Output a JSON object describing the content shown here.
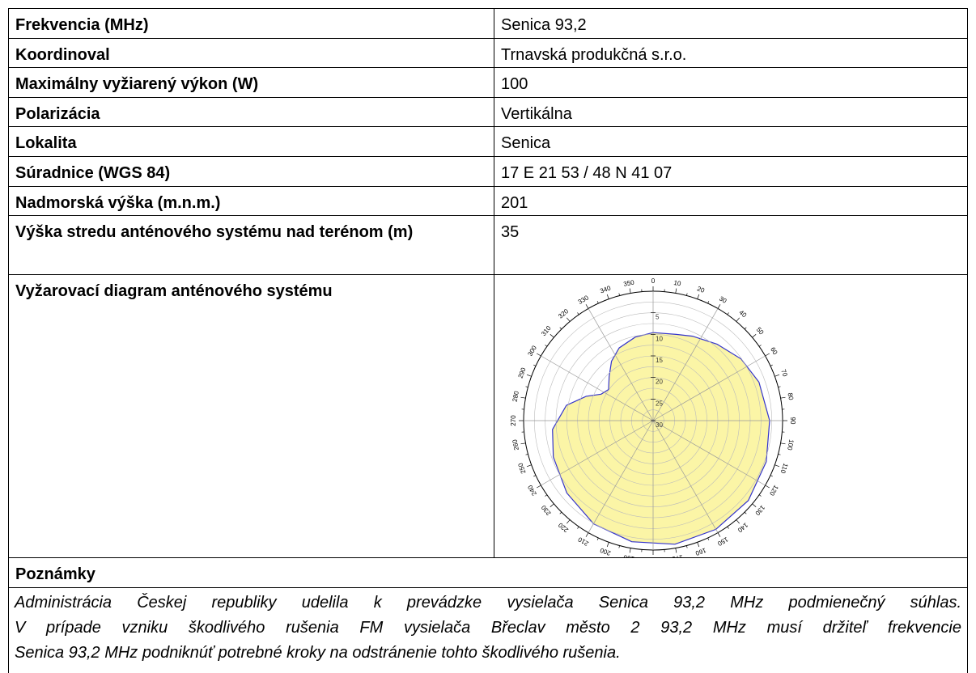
{
  "table": {
    "rows": [
      [
        "Frekvencia (MHz)",
        "Senica 93,2"
      ],
      [
        "Koordinoval",
        "Trnavská produkčná s.r.o."
      ],
      [
        "Maximálny vyžiarený výkon (W)",
        "100"
      ],
      [
        "Polarizácia",
        "Vertikálna"
      ],
      [
        "Lokalita",
        "Senica"
      ],
      [
        "Súradnice (WGS 84)",
        "17 E 21 53 / 48 N 41 07"
      ],
      [
        "Nadmorská výška (m.n.m.)",
        "201"
      ],
      [
        "Výška stredu anténového systému nad terénom (m)",
        "35"
      ],
      [
        "Vyžarovací diagram anténového systému"
      ]
    ]
  },
  "diagram": {
    "angle_labels": [
      0,
      10,
      20,
      30,
      40,
      50,
      60,
      70,
      80,
      90,
      100,
      110,
      120,
      130,
      140,
      150,
      160,
      170,
      180,
      190,
      200,
      210,
      220,
      230,
      240,
      250,
      260,
      270,
      280,
      290,
      300,
      310,
      320,
      330,
      340,
      350
    ],
    "radial_labels": [
      5,
      10,
      15,
      20,
      25,
      30
    ]
  },
  "notes": {
    "heading": "Poznámky",
    "lines": [
      "Administrácia Českej republiky udelila k prevádzke vysielača Senica 93,2 MHz podmienečný súhlas.",
      "V prípade vzniku škodlivého rušenia FM vysielača Břeclav město 2 93,2 MHz musí držiteľ frekvencie",
      "Senica 93,2 MHz podniknúť potrebné kroky na odstránenie tohto škodlivého rušenia."
    ]
  }
}
